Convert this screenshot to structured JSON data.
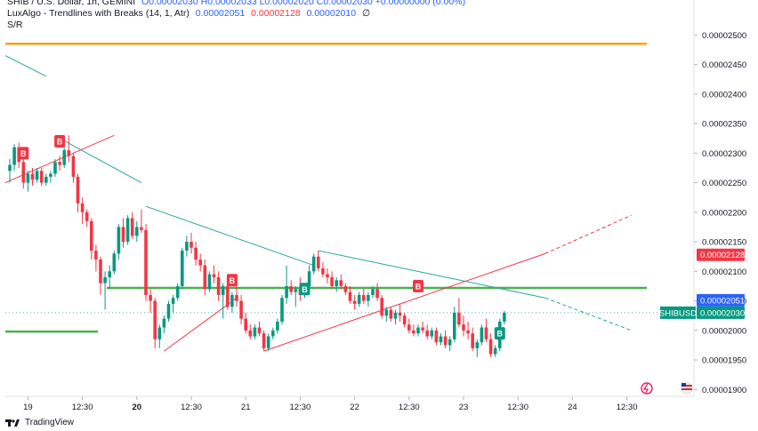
{
  "legend": {
    "symbol": "SHIB / U.S. Dollar, 1h, GEMINI",
    "ohlc": "O0.00002030 H0.00002033 L0.00002020 C0.00002030 +0.00000000 (0.00%)",
    "indicator_name": "LuxAlgo - Trendlines with Breaks (14, 1, Atr)",
    "indicator_values": [
      "0.00002051",
      "0.00002128",
      "0.00002010",
      "∅"
    ],
    "sr_label": "S/R"
  },
  "footer": {
    "brand": "TradingView"
  },
  "colors": {
    "up": "#089981",
    "down": "#f23645",
    "orange": "#f7a21b",
    "green_line": "#4caf50",
    "teal_line": "#26a69a",
    "red_line": "#f23645",
    "blue_tag": "#2962ff"
  },
  "chart_data": {
    "type": "candlestick",
    "y_axis": {
      "ticks": [
        "0.00002500",
        "0.00002450",
        "0.00002400",
        "0.00002350",
        "0.00002300",
        "0.00002250",
        "0.00002200",
        "0.00002150",
        "0.00002100",
        "0.00002050",
        "0.00002000",
        "0.00001950",
        "0.00001900"
      ],
      "range": [
        1.89e-05,
        2.52e-05
      ]
    },
    "x_axis": {
      "ticks": [
        {
          "label": "19",
          "bold": false,
          "bar": 4
        },
        {
          "label": "12:30",
          "bold": false,
          "bar": 16
        },
        {
          "label": "20",
          "bold": true,
          "bar": 28
        },
        {
          "label": "12:30",
          "bold": false,
          "bar": 40
        },
        {
          "label": "21",
          "bold": false,
          "bar": 52
        },
        {
          "label": "12:30",
          "bold": false,
          "bar": 64
        },
        {
          "label": "22",
          "bold": false,
          "bar": 76
        },
        {
          "label": "12:30",
          "bold": false,
          "bar": 88
        },
        {
          "label": "23",
          "bold": false,
          "bar": 100
        },
        {
          "label": "12:30",
          "bold": false,
          "bar": 112
        },
        {
          "label": "24",
          "bold": false,
          "bar": 124
        },
        {
          "label": "12:30",
          "bold": false,
          "bar": 136
        }
      ]
    },
    "price_tags": [
      {
        "text": "0.00002128",
        "value": 2.128e-05,
        "color": "#f23645",
        "kind": "box"
      },
      {
        "text": "0.00002051",
        "value": 2.051e-05,
        "color": "#2962ff",
        "kind": "box"
      },
      {
        "text": "0.00002030",
        "value": 2.03e-05,
        "color": "#089981",
        "kind": "box",
        "prefix": "SHIBUSD"
      }
    ],
    "horizontal_levels": [
      {
        "name": "resistance",
        "value": 2.485e-05,
        "color": "#f7a21b"
      },
      {
        "name": "support",
        "value": 2.072e-05,
        "color": "#4caf50"
      },
      {
        "name": "old-support",
        "value": 1.998e-05,
        "color": "#4caf50"
      }
    ],
    "candles": [
      [
        2.27e-05,
        2.29e-05,
        2.25e-05,
        2.28e-05
      ],
      [
        2.28e-05,
        2.315e-05,
        2.27e-05,
        2.31e-05
      ],
      [
        2.31e-05,
        2.318e-05,
        2.275e-05,
        2.285e-05
      ],
      [
        2.285e-05,
        2.295e-05,
        2.24e-05,
        2.25e-05
      ],
      [
        2.25e-05,
        2.27e-05,
        2.235e-05,
        2.265e-05
      ],
      [
        2.265e-05,
        2.275e-05,
        2.245e-05,
        2.255e-05
      ],
      [
        2.255e-05,
        2.275e-05,
        2.25e-05,
        2.27e-05
      ],
      [
        2.27e-05,
        2.275e-05,
        2.245e-05,
        2.25e-05
      ],
      [
        2.25e-05,
        2.265e-05,
        2.245e-05,
        2.26e-05
      ],
      [
        2.26e-05,
        2.27e-05,
        2.25e-05,
        2.265e-05
      ],
      [
        2.265e-05,
        2.29e-05,
        2.26e-05,
        2.285e-05
      ],
      [
        2.285e-05,
        2.295e-05,
        2.27e-05,
        2.28e-05
      ],
      [
        2.28e-05,
        2.31e-05,
        2.275e-05,
        2.305e-05
      ],
      [
        2.305e-05,
        2.33e-05,
        2.285e-05,
        2.295e-05
      ],
      [
        2.295e-05,
        2.3e-05,
        2.25e-05,
        2.26e-05
      ],
      [
        2.26e-05,
        2.265e-05,
        2.2e-05,
        2.215e-05
      ],
      [
        2.215e-05,
        2.225e-05,
        2.18e-05,
        2.2e-05
      ],
      [
        2.2e-05,
        2.205e-05,
        2.175e-05,
        2.185e-05
      ],
      [
        2.185e-05,
        2.19e-05,
        2.12e-05,
        2.135e-05
      ],
      [
        2.135e-05,
        2.145e-05,
        2.1e-05,
        2.12e-05
      ],
      [
        2.12e-05,
        2.125e-05,
        2.06e-05,
        2.08e-05
      ],
      [
        2.08e-05,
        2.1e-05,
        2.035e-05,
        2.09e-05
      ],
      [
        2.09e-05,
        2.11e-05,
        2.07e-05,
        2.1e-05
      ],
      [
        2.1e-05,
        2.135e-05,
        2.095e-05,
        2.13e-05
      ],
      [
        2.13e-05,
        2.18e-05,
        2.12e-05,
        2.175e-05
      ],
      [
        2.175e-05,
        2.19e-05,
        2.14e-05,
        2.15e-05
      ],
      [
        2.15e-05,
        2.195e-05,
        2.145e-05,
        2.19e-05
      ],
      [
        2.19e-05,
        2.2e-05,
        2.155e-05,
        2.16e-05
      ],
      [
        2.16e-05,
        2.185e-05,
        2.15e-05,
        2.175e-05
      ],
      [
        2.175e-05,
        2.205e-05,
        2.165e-05,
        2.17e-05
      ],
      [
        2.17e-05,
        2.18e-05,
        2.05e-05,
        2.06e-05
      ],
      [
        2.06e-05,
        2.07e-05,
        2.03e-05,
        2.05e-05
      ],
      [
        2.05e-05,
        2.055e-05,
        1.97e-05,
        1.985e-05
      ],
      [
        1.985e-05,
        2.01e-05,
        1.97e-05,
        2.005e-05
      ],
      [
        2.005e-05,
        2.025e-05,
        1.995e-05,
        2.02e-05
      ],
      [
        2.02e-05,
        2.05e-05,
        2.015e-05,
        2.045e-05
      ],
      [
        2.045e-05,
        2.06e-05,
        2.03e-05,
        2.055e-05
      ],
      [
        2.055e-05,
        2.08e-05,
        2.05e-05,
        2.075e-05
      ],
      [
        2.075e-05,
        2.14e-05,
        2.07e-05,
        2.135e-05
      ],
      [
        2.135e-05,
        2.16e-05,
        2.125e-05,
        2.15e-05
      ],
      [
        2.15e-05,
        2.165e-05,
        2.13e-05,
        2.14e-05
      ],
      [
        2.14e-05,
        2.15e-05,
        2.11e-05,
        2.12e-05
      ],
      [
        2.12e-05,
        2.13e-05,
        2.1e-05,
        2.11e-05
      ],
      [
        2.11e-05,
        2.12e-05,
        2.06e-05,
        2.07e-05
      ],
      [
        2.07e-05,
        2.1e-05,
        2.065e-05,
        2.095e-05
      ],
      [
        2.095e-05,
        2.11e-05,
        2.08e-05,
        2.09e-05
      ],
      [
        2.09e-05,
        2.1e-05,
        2.05e-05,
        2.06e-05
      ],
      [
        2.06e-05,
        2.08e-05,
        2.02e-05,
        2.075e-05
      ],
      [
        2.075e-05,
        2.085e-05,
        2.035e-05,
        2.04e-05
      ],
      [
        2.04e-05,
        2.065e-05,
        2.03e-05,
        2.06e-05
      ],
      [
        2.06e-05,
        2.075e-05,
        2.04e-05,
        2.05e-05
      ],
      [
        2.05e-05,
        2.06e-05,
        2.01e-05,
        2.02e-05
      ],
      [
        2.02e-05,
        2.03e-05,
        1.995e-05,
        2e-05
      ],
      [
        2e-05,
        2.01e-05,
        1.985e-05,
        1.99e-05
      ],
      [
        1.99e-05,
        2.01e-05,
        1.985e-05,
        2.005e-05
      ],
      [
        2.005e-05,
        2.015e-05,
        1.99e-05,
        1.995e-05
      ],
      [
        1.995e-05,
        2e-05,
        1.965e-05,
        1.97e-05
      ],
      [
        1.97e-05,
        1.995e-05,
        1.965e-05,
        1.99e-05
      ],
      [
        1.99e-05,
        2.005e-05,
        1.985e-05,
        2e-05
      ],
      [
        2e-05,
        2.02e-05,
        1.995e-05,
        2.015e-05
      ],
      [
        2.015e-05,
        2.06e-05,
        2.01e-05,
        2.055e-05
      ],
      [
        2.055e-05,
        2.11e-05,
        2.045e-05,
        2.075e-05
      ],
      [
        2.075e-05,
        2.085e-05,
        2.06e-05,
        2.065e-05
      ],
      [
        2.065e-05,
        2.075e-05,
        2.04e-05,
        2.07e-05
      ],
      [
        2.07e-05,
        2.09e-05,
        2.05e-05,
        2.06e-05
      ],
      [
        2.06e-05,
        2.08e-05,
        2.055e-05,
        2.075e-05
      ],
      [
        2.075e-05,
        2.11e-05,
        2.07e-05,
        2.1e-05
      ],
      [
        2.1e-05,
        2.13e-05,
        2.095e-05,
        2.125e-05
      ],
      [
        2.125e-05,
        2.135e-05,
        2.1e-05,
        2.105e-05
      ],
      [
        2.105e-05,
        2.115e-05,
        2.09e-05,
        2.095e-05
      ],
      [
        2.095e-05,
        2.105e-05,
        2.08e-05,
        2.09e-05
      ],
      [
        2.09e-05,
        2.1e-05,
        2.07e-05,
        2.075e-05
      ],
      [
        2.075e-05,
        2.09e-05,
        2.065e-05,
        2.085e-05
      ],
      [
        2.085e-05,
        2.095e-05,
        2.07e-05,
        2.075e-05
      ],
      [
        2.075e-05,
        2.08e-05,
        2.06e-05,
        2.065e-05
      ],
      [
        2.065e-05,
        2.075e-05,
        2.045e-05,
        2.05e-05
      ],
      [
        2.05e-05,
        2.06e-05,
        2.035e-05,
        2.045e-05
      ],
      [
        2.045e-05,
        2.065e-05,
        2.04e-05,
        2.06e-05
      ],
      [
        2.06e-05,
        2.07e-05,
        2.045e-05,
        2.05e-05
      ],
      [
        2.05e-05,
        2.065e-05,
        2.04e-05,
        2.06e-05
      ],
      [
        2.06e-05,
        2.075e-05,
        2.055e-05,
        2.07e-05
      ],
      [
        2.07e-05,
        2.08e-05,
        2.05e-05,
        2.055e-05
      ],
      [
        2.055e-05,
        2.06e-05,
        2.02e-05,
        2.025e-05
      ],
      [
        2.025e-05,
        2.04e-05,
        2.015e-05,
        2.035e-05
      ],
      [
        2.035e-05,
        2.04e-05,
        2.015e-05,
        2.02e-05
      ],
      [
        2.02e-05,
        2.035e-05,
        2.01e-05,
        2.03e-05
      ],
      [
        2.03e-05,
        2.045e-05,
        2.015e-05,
        2.025e-05
      ],
      [
        2.025e-05,
        2.03e-05,
        2.005e-05,
        2.01e-05
      ],
      [
        2.01e-05,
        2.02e-05,
        1.995e-05,
        2e-05
      ],
      [
        2e-05,
        2.01e-05,
        1.99e-05,
        1.995e-05
      ],
      [
        1.995e-05,
        2.01e-05,
        1.99e-05,
        2.005e-05
      ],
      [
        2.005e-05,
        2.015e-05,
        1.995e-05,
        2e-05
      ],
      [
        2e-05,
        2.01e-05,
        1.985e-05,
        1.99e-05
      ],
      [
        1.99e-05,
        2.005e-05,
        1.985e-05,
        2e-05
      ],
      [
        2e-05,
        2.005e-05,
        1.975e-05,
        1.98e-05
      ],
      [
        1.98e-05,
        1.995e-05,
        1.975e-05,
        1.99e-05
      ],
      [
        1.99e-05,
        2e-05,
        1.97e-05,
        1.975e-05
      ],
      [
        1.975e-05,
        1.99e-05,
        1.965e-05,
        1.985e-05
      ],
      [
        1.985e-05,
        2.04e-05,
        1.98e-05,
        2.03e-05
      ],
      [
        2.03e-05,
        2.055e-05,
        2.005e-05,
        2.01e-05
      ],
      [
        2.01e-05,
        2.025e-05,
        1.99e-05,
        2e-05
      ],
      [
        2e-05,
        2.015e-05,
        1.985e-05,
        1.995e-05
      ],
      [
        1.995e-05,
        2.005e-05,
        1.965e-05,
        1.97e-05
      ],
      [
        1.97e-05,
        1.985e-05,
        1.955e-05,
        1.98e-05
      ],
      [
        1.98e-05,
        2.01e-05,
        1.975e-05,
        2.005e-05
      ],
      [
        2.005e-05,
        2.02e-05,
        1.98e-05,
        1.985e-05
      ],
      [
        1.985e-05,
        1.995e-05,
        1.955e-05,
        1.96e-05
      ],
      [
        1.96e-05,
        1.975e-05,
        1.955e-05,
        1.97e-05
      ],
      [
        1.97e-05,
        2.02e-05,
        1.965e-05,
        2.015e-05
      ],
      [
        2.015e-05,
        2.033e-05,
        2.01e-05,
        2.03e-05
      ]
    ],
    "trendlines": [
      {
        "name": "upper-1",
        "color": "#26a69a",
        "from": [
          -1,
          2.465e-05
        ],
        "to": [
          8,
          2.43e-05
        ]
      },
      {
        "name": "upper-2",
        "color": "#26a69a",
        "from": [
          11,
          2.325e-05
        ],
        "to": [
          29,
          2.25e-05
        ]
      },
      {
        "name": "upper-3",
        "color": "#26a69a",
        "from": [
          30,
          2.21e-05
        ],
        "to": [
          67,
          2.11e-05
        ]
      },
      {
        "name": "upper-4",
        "color": "#26a69a",
        "from": [
          68,
          2.135e-05
        ],
        "to": [
          118,
          2.055e-05
        ]
      },
      {
        "name": "upper-4-ext",
        "color": "#26a69a",
        "dashed": true,
        "from": [
          118,
          2.055e-05
        ],
        "to": [
          137,
          2e-05
        ]
      },
      {
        "name": "lower-1",
        "color": "#f23645",
        "from": [
          -1,
          2.25e-05
        ],
        "to": [
          23,
          2.33e-05
        ]
      },
      {
        "name": "lower-2",
        "color": "#f23645",
        "from": [
          34,
          1.965e-05
        ],
        "to": [
          50,
          2.055e-05
        ]
      },
      {
        "name": "lower-3",
        "color": "#f23645",
        "from": [
          56,
          1.965e-05
        ],
        "to": [
          118,
          2.13e-05
        ]
      },
      {
        "name": "lower-3-ext",
        "color": "#f23645",
        "dashed": true,
        "from": [
          118,
          2.13e-05
        ],
        "to": [
          137,
          2.195e-05
        ]
      }
    ],
    "break_labels": [
      {
        "text": "B",
        "bar": 3,
        "value": 2.3e-05,
        "color": "#f23645"
      },
      {
        "text": "B",
        "bar": 11,
        "value": 2.32e-05,
        "color": "#f23645"
      },
      {
        "text": "B",
        "bar": 49,
        "value": 2.085e-05,
        "color": "#f23645"
      },
      {
        "text": "B",
        "bar": 65,
        "value": 2.07e-05,
        "color": "#089981"
      },
      {
        "text": "B",
        "bar": 90,
        "value": 2.075e-05,
        "color": "#f23645"
      },
      {
        "text": "B",
        "bar": 108,
        "value": 1.995e-05,
        "color": "#089981"
      }
    ]
  }
}
